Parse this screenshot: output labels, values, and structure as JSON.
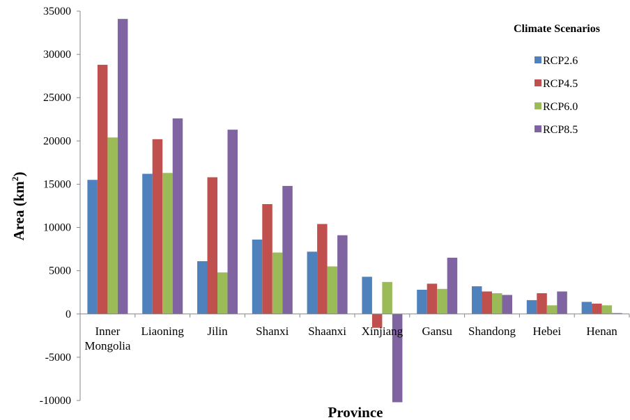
{
  "chart_data": {
    "type": "bar",
    "xlabel": "Province",
    "ylabel": "Area (km",
    "ylabel_sup": "2",
    "ylabel_close": ")",
    "ylim": [
      -10000,
      35000
    ],
    "yticks": [
      -10000,
      -5000,
      0,
      5000,
      10000,
      15000,
      20000,
      25000,
      30000,
      35000
    ],
    "grid": false,
    "legend": {
      "title": "Climate Scenarios",
      "position": "top-right"
    },
    "categories": [
      [
        "Inner",
        "Mongolia"
      ],
      [
        "Liaoning"
      ],
      [
        "Jilin"
      ],
      [
        "Shanxi"
      ],
      [
        "Shaanxi"
      ],
      [
        "Xinjiang"
      ],
      [
        "Gansu"
      ],
      [
        "Shandong"
      ],
      [
        "Hebei"
      ],
      [
        "Henan"
      ]
    ],
    "series": [
      {
        "name": "RCP2.6",
        "color": "#4f81bd",
        "values": [
          15500,
          16200,
          6100,
          8600,
          7200,
          4300,
          2800,
          3200,
          1600,
          1400
        ]
      },
      {
        "name": "RCP4.5",
        "color": "#c0504d",
        "values": [
          28800,
          20200,
          15800,
          12700,
          10400,
          -1600,
          3500,
          2600,
          2400,
          1200
        ]
      },
      {
        "name": "RCP6.0",
        "color": "#9bbb59",
        "values": [
          20400,
          16300,
          4800,
          7100,
          5500,
          3700,
          2900,
          2400,
          1000,
          1000
        ]
      },
      {
        "name": "RCP8.5",
        "color": "#8064a2",
        "values": [
          34100,
          22600,
          21300,
          14800,
          9100,
          -10200,
          6500,
          2200,
          2600,
          100
        ]
      }
    ]
  }
}
